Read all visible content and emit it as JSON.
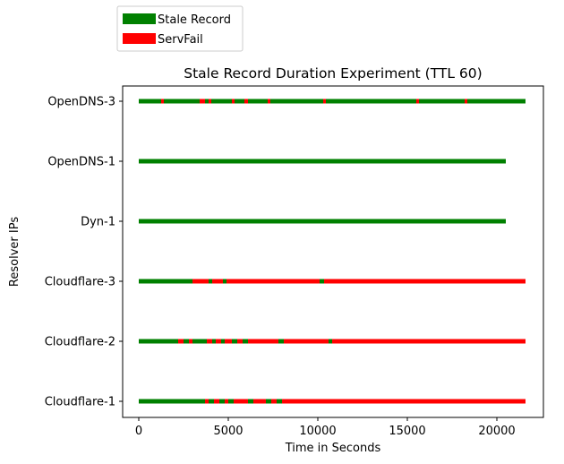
{
  "chart_data": {
    "type": "timeline",
    "title": "Stale Record Duration Experiment (TTL 60)",
    "xlabel": "Time in Seconds",
    "ylabel": "Resolver IPs",
    "xlim": [
      -900,
      22600
    ],
    "xticks": [
      0,
      5000,
      10000,
      15000,
      20000
    ],
    "grid": false,
    "legend_placement": "top-left, above plot",
    "legend": [
      {
        "label": "Stale Record",
        "color": "#008000"
      },
      {
        "label": "ServFail",
        "color": "#ff0000"
      }
    ],
    "categories": [
      "OpenDNS-3",
      "OpenDNS-1",
      "Dyn-1",
      "Cloudflare-3",
      "Cloudflare-2",
      "Cloudflare-1"
    ],
    "series": [
      {
        "resolver": "OpenDNS-3",
        "start": 0,
        "end": 21600,
        "base": "stale",
        "servfail": [
          [
            1250,
            1400
          ],
          [
            3400,
            3700
          ],
          [
            3900,
            4050
          ],
          [
            5200,
            5350
          ],
          [
            5900,
            6100
          ],
          [
            7200,
            7350
          ],
          [
            10300,
            10450
          ],
          [
            15500,
            15650
          ],
          [
            18200,
            18350
          ]
        ]
      },
      {
        "resolver": "OpenDNS-1",
        "start": 0,
        "end": 20500,
        "base": "stale",
        "servfail": []
      },
      {
        "resolver": "Dyn-1",
        "start": 0,
        "end": 20500,
        "base": "stale",
        "servfail": []
      },
      {
        "resolver": "Cloudflare-3",
        "start": 0,
        "end": 21600,
        "base": "stale",
        "servfail": [
          [
            3000,
            3900
          ],
          [
            4100,
            4700
          ],
          [
            4900,
            10100
          ],
          [
            10350,
            21600
          ]
        ]
      },
      {
        "resolver": "Cloudflare-2",
        "start": 0,
        "end": 21600,
        "base": "stale",
        "servfail": [
          [
            2200,
            2500
          ],
          [
            2800,
            3000
          ],
          [
            3800,
            4100
          ],
          [
            4300,
            4600
          ],
          [
            4800,
            5200
          ],
          [
            5500,
            5800
          ],
          [
            6100,
            7800
          ],
          [
            8100,
            10600
          ],
          [
            10800,
            21600
          ]
        ]
      },
      {
        "resolver": "Cloudflare-1",
        "start": 0,
        "end": 21600,
        "base": "stale",
        "servfail": [
          [
            3700,
            3900
          ],
          [
            4200,
            4500
          ],
          [
            4800,
            5000
          ],
          [
            5300,
            6100
          ],
          [
            6400,
            7100
          ],
          [
            7400,
            7700
          ],
          [
            8000,
            21600
          ]
        ]
      }
    ]
  }
}
